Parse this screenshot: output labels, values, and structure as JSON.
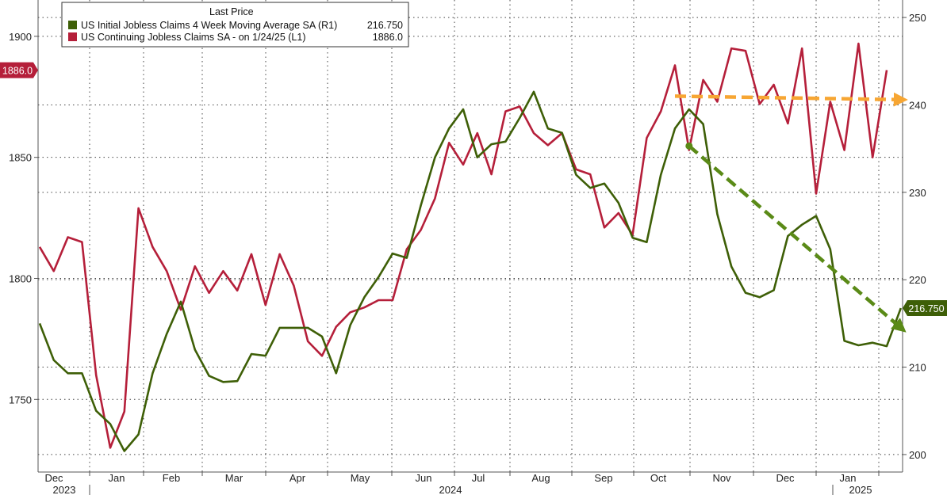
{
  "chart_data": {
    "type": "line",
    "legend": {
      "header": "Last Price",
      "position": "top-left"
    },
    "series": [
      {
        "name": "US Initial Jobless Claims 4 Week Moving Average SA  (R1)",
        "last_value": "216.750",
        "axis": "right",
        "color": "#3e5f07",
        "values": [
          215.0,
          210.8,
          209.3,
          209.3,
          205.0,
          203.5,
          200.4,
          202.3,
          209.3,
          213.8,
          217.5,
          212.0,
          209.0,
          208.3,
          208.4,
          211.5,
          211.3,
          214.5,
          214.5,
          214.5,
          213.5,
          209.3,
          214.8,
          218.0,
          220.3,
          223.0,
          222.5,
          228.5,
          234.0,
          237.3,
          239.5,
          234.0,
          235.5,
          235.8,
          238.5,
          241.5,
          237.3,
          236.8,
          232.0,
          230.5,
          231.0,
          228.8,
          224.8,
          224.3,
          232.0,
          237.3,
          239.5,
          237.8,
          227.5,
          221.5,
          218.5,
          218.0,
          218.8,
          225.0,
          226.3,
          227.3,
          223.5,
          213.0,
          212.5,
          212.8,
          212.4,
          216.75
        ]
      },
      {
        "name": "US Continuing Jobless Claims SA -  on 1/24/25  (L1)",
        "last_value": "1886.0",
        "axis": "left",
        "color": "#b51f3a",
        "values": [
          1813,
          1803,
          1817,
          1815,
          1760,
          1730,
          1745,
          1829,
          1813,
          1803,
          1787,
          1805,
          1794,
          1803,
          1795,
          1810,
          1789,
          1810,
          1797,
          1774,
          1768,
          1780,
          1786,
          1788,
          1791,
          1791,
          1812,
          1820,
          1833,
          1856,
          1847,
          1860,
          1843,
          1869,
          1871,
          1860,
          1855,
          1860,
          1845,
          1843,
          1821,
          1827,
          1818,
          1858,
          1869,
          1888,
          1853,
          1882,
          1873,
          1895,
          1894,
          1872,
          1880,
          1864,
          1895,
          1835,
          1873,
          1853,
          1897,
          1850,
          1886
        ]
      }
    ],
    "left_axis": {
      "ylim": [
        1720,
        1915
      ],
      "ticks": [
        "1750",
        "1800",
        "1850",
        "1900"
      ]
    },
    "right_axis": {
      "ylim": [
        198,
        252
      ],
      "ticks": [
        "200",
        "210",
        "220",
        "230",
        "240",
        "250"
      ]
    },
    "x_axis": {
      "months": [
        "Dec",
        "Jan",
        "Feb",
        "Mar",
        "Apr",
        "May",
        "Jun",
        "Jul",
        "Aug",
        "Sep",
        "Oct",
        "Nov",
        "Dec",
        "Jan"
      ],
      "years": [
        "2023",
        "2024",
        "2025"
      ]
    },
    "annotations": [
      {
        "type": "dashed-arrow",
        "color": "#f7a633",
        "from": {
          "index": 45,
          "value": 241.0
        },
        "to": {
          "index": 61,
          "value": 240.6
        },
        "axis": "right"
      },
      {
        "type": "dashed-arrow",
        "color": "#5a8a17",
        "from": {
          "index": 46,
          "value": 235.3
        },
        "to": {
          "index": 61,
          "value": 214.5
        },
        "axis": "right"
      }
    ],
    "grid": true
  }
}
